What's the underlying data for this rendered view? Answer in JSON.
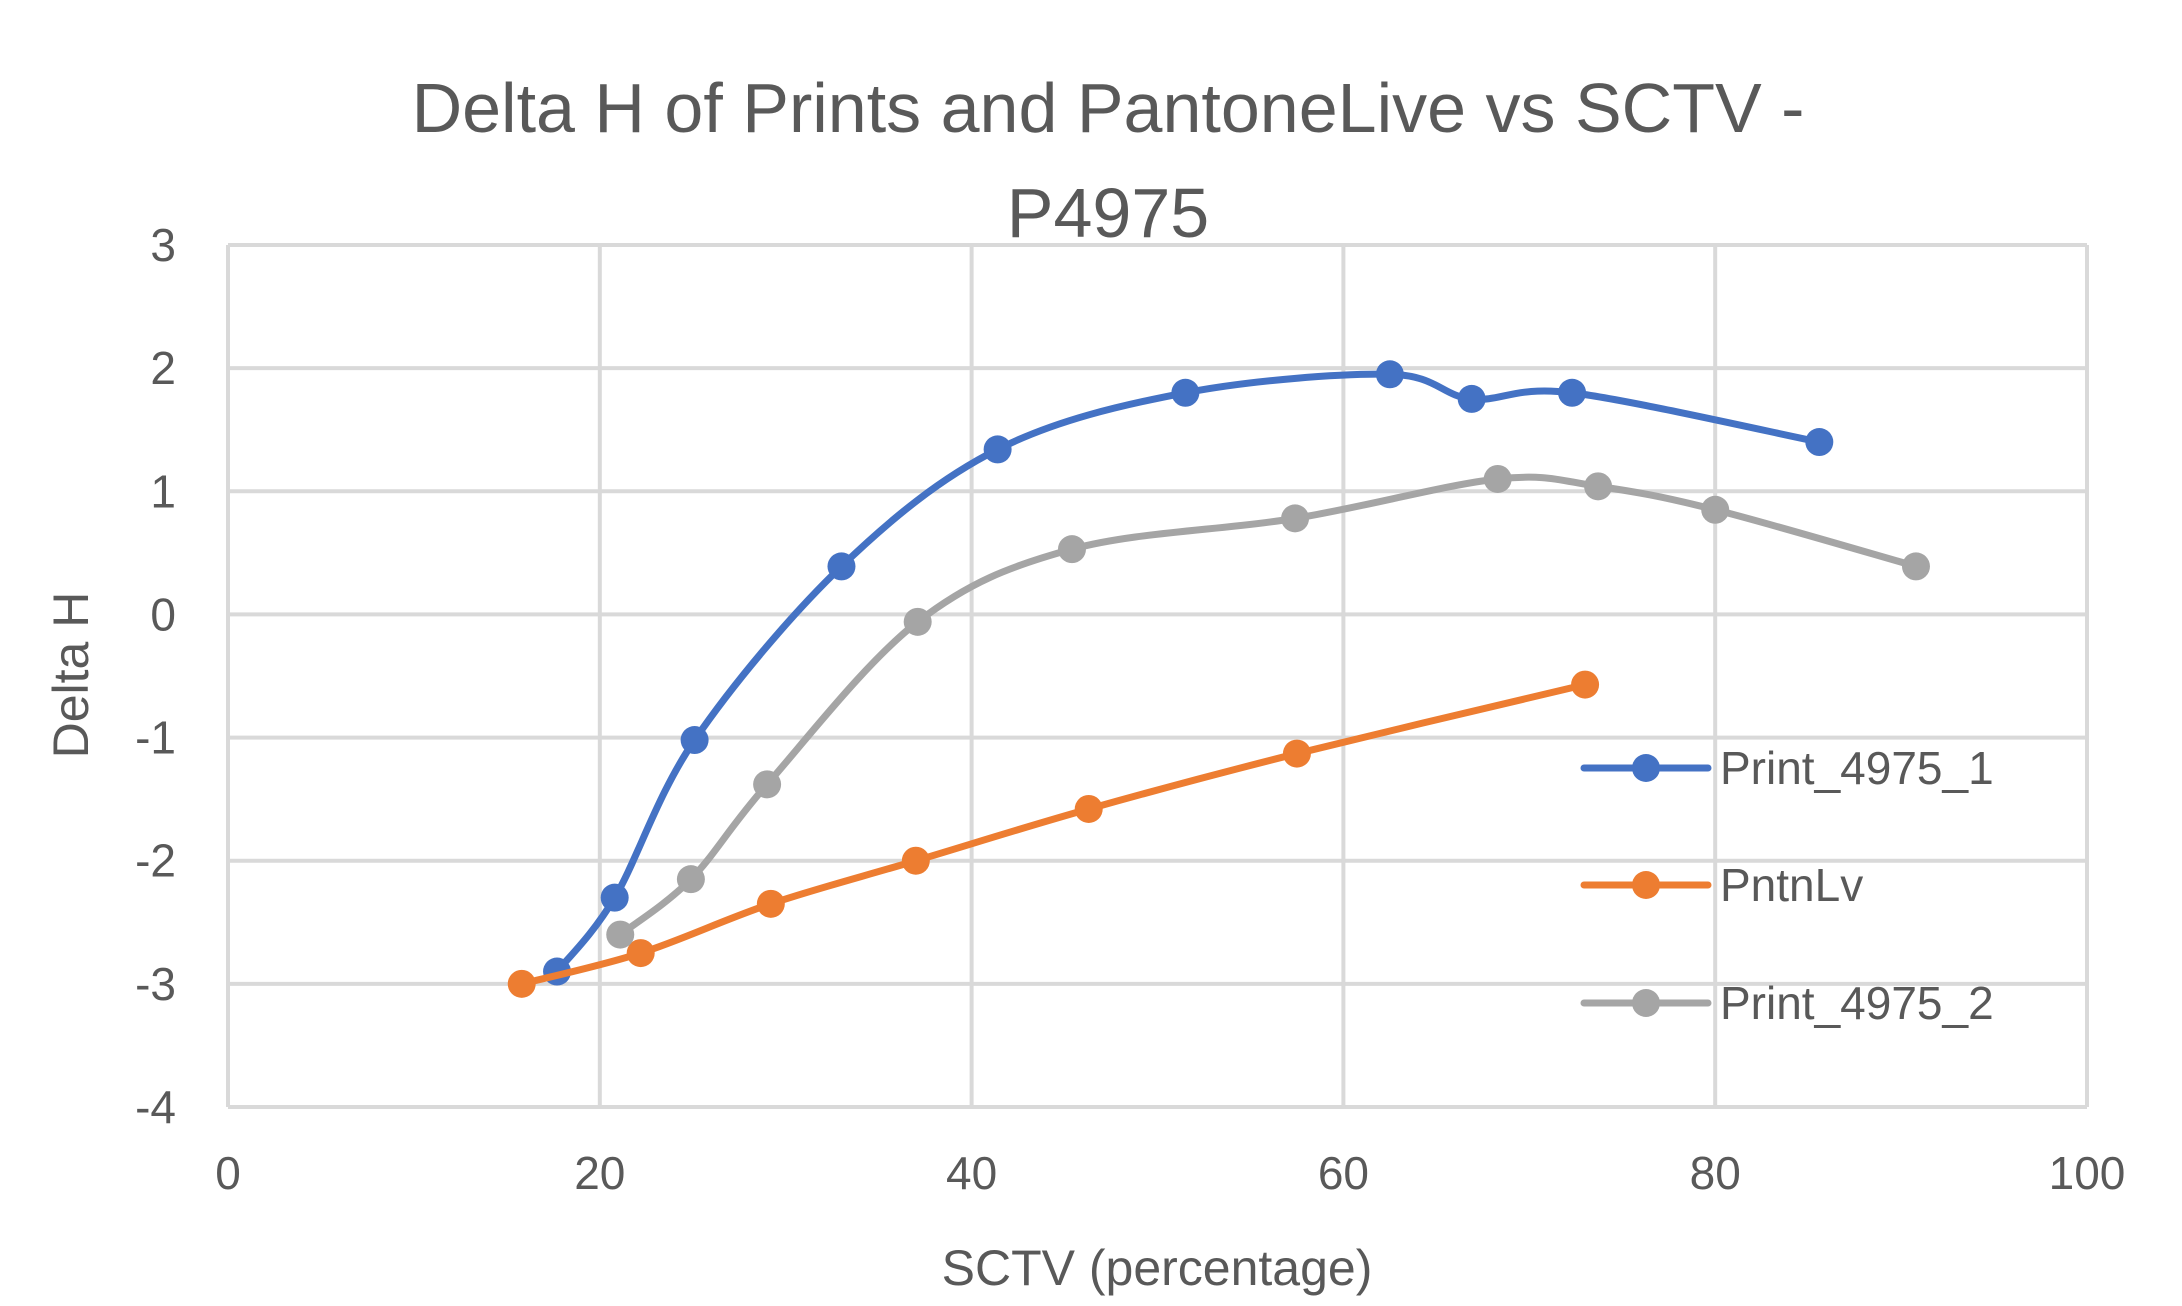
{
  "chart_data": {
    "type": "line",
    "title_lines": [
      "Delta H of Prints and PantoneLive vs SCTV -",
      "P4975"
    ],
    "xlabel": "SCTV (percentage)",
    "ylabel": "Delta H",
    "xlim": [
      0,
      100
    ],
    "ylim": [
      -4,
      3
    ],
    "xticks": [
      0,
      20,
      40,
      60,
      80,
      100
    ],
    "yticks": [
      -4,
      -3,
      -2,
      -1,
      0,
      1,
      2,
      3
    ],
    "grid": true,
    "legend_position": "right",
    "series": [
      {
        "name": "Print_4975_1",
        "color": "#4472c4",
        "x": [
          17.7,
          20.8,
          25.1,
          33.0,
          41.4,
          51.5,
          62.5,
          66.9,
          72.3,
          85.6
        ],
        "y": [
          -2.9,
          -2.3,
          -1.02,
          0.39,
          1.34,
          1.8,
          1.95,
          1.75,
          1.8,
          1.4
        ]
      },
      {
        "name": "PntnLv",
        "color": "#ed7d31",
        "x": [
          15.8,
          22.2,
          29.2,
          37.0,
          46.3,
          57.5,
          73.0
        ],
        "y": [
          -3.0,
          -2.75,
          -2.35,
          -2.0,
          -1.58,
          -1.13,
          -0.57
        ]
      },
      {
        "name": "Print_4975_2",
        "color": "#a5a5a5",
        "x": [
          21.1,
          24.9,
          29.0,
          37.1,
          45.4,
          57.4,
          68.3,
          73.7,
          80.0,
          90.8
        ],
        "y": [
          -2.6,
          -2.15,
          -1.38,
          -0.06,
          0.53,
          0.78,
          1.1,
          1.04,
          0.85,
          0.39
        ]
      }
    ]
  }
}
